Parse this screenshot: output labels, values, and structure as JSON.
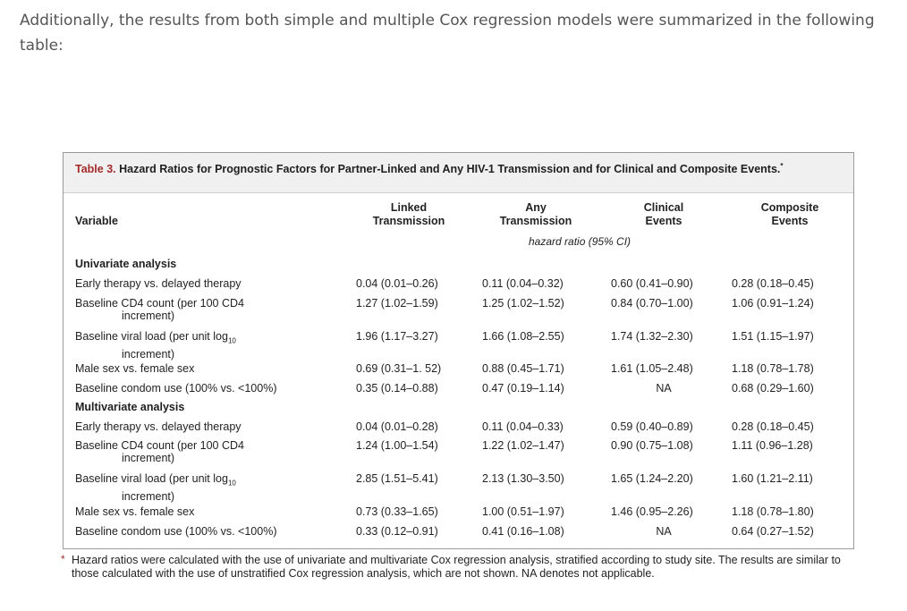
{
  "intro_text": "Additionally, the results from both simple and multiple Cox regression models were summarized in the following table:",
  "table": {
    "caption_label": "Table 3.",
    "caption_text": "Hazard Ratios for Prognostic Factors for Partner-Linked and Any HIV-1 Transmission and for Clinical and Composite Events.",
    "caption_marker": "*",
    "columns": {
      "variable": "Variable",
      "linked": [
        "Linked",
        "Transmission"
      ],
      "any": [
        "Any",
        "Transmission"
      ],
      "clinical": [
        "Clinical",
        "Events"
      ],
      "composite": [
        "Composite",
        "Events"
      ]
    },
    "units": "hazard ratio (95% CI)",
    "sections": [
      {
        "title": "Univariate analysis",
        "rows": [
          {
            "label": "Early therapy vs. delayed therapy",
            "cont": "",
            "linked": "0.04 (0.01–0.26)",
            "any": "0.11 (0.04–0.32)",
            "clinical": "0.60 (0.41–0.90)",
            "composite": "0.28 (0.18–0.45)"
          },
          {
            "label": "Baseline CD4 count (per 100 CD4",
            "cont": "increment)",
            "linked": "1.27 (1.02–1.59)",
            "any": "1.25 (1.02–1.52)",
            "clinical": "0.84 (0.70–1.00)",
            "composite": "1.06 (0.91–1.24)"
          },
          {
            "label": "Baseline viral load (per unit log",
            "sub": "10",
            "cont": "increment)",
            "linked": "1.96 (1.17–3.27)",
            "any": "1.66 (1.08–2.55)",
            "clinical": "1.74 (1.32–2.30)",
            "composite": "1.51 (1.15–1.97)"
          },
          {
            "label": "Male sex vs. female sex",
            "cont": "",
            "linked": "0.69 (0.31–1. 52)",
            "any": "0.88 (0.45–1.71)",
            "clinical": "1.61 (1.05–2.48)",
            "composite": "1.18 (0.78–1.78)"
          },
          {
            "label": "Baseline condom use (100% vs. <100%)",
            "cont": "",
            "linked": "0.35 (0.14–0.88)",
            "any": "0.47 (0.19–1.14)",
            "clinical": "NA",
            "composite": "0.68 (0.29–1.60)"
          }
        ]
      },
      {
        "title": "Multivariate analysis",
        "rows": [
          {
            "label": "Early therapy vs. delayed therapy",
            "cont": "",
            "linked": "0.04 (0.01–0.28)",
            "any": "0.11 (0.04–0.33)",
            "clinical": "0.59 (0.40–0.89)",
            "composite": "0.28 (0.18–0.45)"
          },
          {
            "label": "Baseline CD4 count (per 100 CD4",
            "cont": "increment)",
            "linked": "1.24 (1.00–1.54)",
            "any": "1.22 (1.02–1.47)",
            "clinical": "0.90 (0.75–1.08)",
            "composite": "1.11 (0.96–1.28)"
          },
          {
            "label": "Baseline viral load (per unit log",
            "sub": "10",
            "cont": "increment)",
            "linked": "2.85 (1.51–5.41)",
            "any": "2.13 (1.30–3.50)",
            "clinical": "1.65 (1.24–2.20)",
            "composite": "1.60 (1.21–2.11)"
          },
          {
            "label": "Male sex vs. female sex",
            "cont": "",
            "linked": "0.73 (0.33–1.65)",
            "any": "1.00 (0.51–1.97)",
            "clinical": "1.46 (0.95–2.26)",
            "composite": "1.18 (0.78–1.80)"
          },
          {
            "label": "Baseline condom use (100% vs. <100%)",
            "cont": "",
            "linked": "0.33 (0.12–0.91)",
            "any": "0.41 (0.16–1.08)",
            "clinical": "NA",
            "composite": "0.64 (0.27–1.52)"
          }
        ]
      }
    ],
    "footnote_marker": "*",
    "footnote": "Hazard ratios were calculated with the use of univariate and multivariate Cox regression analysis, stratified according to study site. The results are similar to those calculated with the use of unstratified Cox regression analysis, which are not shown. NA denotes not applicable."
  }
}
